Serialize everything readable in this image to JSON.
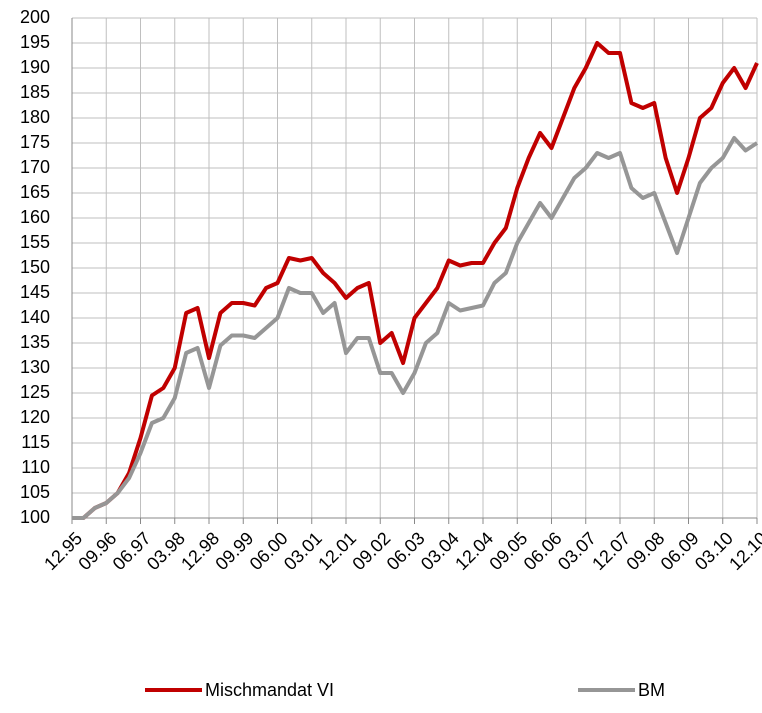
{
  "chart_data": {
    "type": "line",
    "categories": [
      "12.95",
      null,
      null,
      "09.96",
      null,
      null,
      "06.97",
      null,
      null,
      "03.98",
      null,
      null,
      "12.98",
      null,
      null,
      "09.99",
      null,
      null,
      "06.00",
      null,
      null,
      "03.01",
      null,
      null,
      "12.01",
      null,
      null,
      "09.02",
      null,
      null,
      "06.03",
      null,
      null,
      "03.04",
      null,
      null,
      "12.04",
      null,
      null,
      "09.05",
      null,
      null,
      "06.06",
      null,
      null,
      "03.07",
      null,
      null,
      "12.07",
      null,
      null,
      "09.08",
      null,
      null,
      "06.09",
      null,
      null,
      "03.10",
      null,
      null,
      "12.10"
    ],
    "series": [
      {
        "name": "Mischmandat VI",
        "color": "#c00000",
        "values": [
          100,
          100,
          102,
          103,
          105,
          109,
          116,
          124.5,
          126,
          130,
          141,
          142,
          132,
          141,
          143,
          143,
          142.5,
          146,
          147,
          152,
          151.5,
          152,
          149,
          147,
          144,
          146,
          147,
          135,
          137,
          131,
          140,
          143,
          146,
          151.5,
          150.5,
          151,
          151,
          155,
          158,
          166,
          172,
          177,
          174,
          180,
          186,
          190,
          195,
          193,
          193,
          183,
          182,
          183,
          172,
          165,
          172,
          180,
          182,
          187,
          190,
          186,
          191
        ]
      },
      {
        "name": "BM",
        "color": "#969696",
        "values": [
          100,
          100,
          102,
          103,
          105,
          108,
          113,
          119,
          120,
          124,
          133,
          134,
          126,
          134.5,
          136.5,
          136.5,
          136,
          138,
          140,
          146,
          145,
          145,
          141,
          143,
          133,
          136,
          136,
          129,
          129,
          125,
          129,
          135,
          137,
          143,
          141.5,
          142,
          142.5,
          147,
          149,
          155,
          159,
          163,
          160,
          164,
          168,
          170,
          173,
          172,
          173,
          166,
          164,
          165,
          159,
          153,
          160,
          167,
          170,
          172,
          176,
          173.5,
          175
        ]
      }
    ],
    "ylim": [
      100,
      200
    ],
    "yticks": [
      100,
      105,
      110,
      115,
      120,
      125,
      130,
      135,
      140,
      145,
      150,
      155,
      160,
      165,
      170,
      175,
      180,
      185,
      190,
      195,
      200
    ],
    "grid": true
  }
}
